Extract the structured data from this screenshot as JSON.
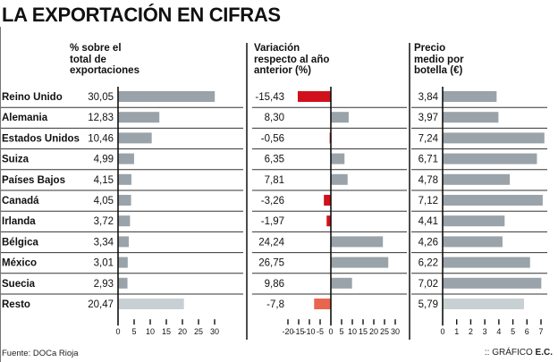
{
  "title": "LA EXPORTACIÓN EN CIFRAS",
  "source": "Fuente: DOCa Rioja",
  "credit_prefix": ":: GRÁFICO ",
  "credit_brand": "E.C.",
  "colors": {
    "bar_gray": "#9aa3a9",
    "bar_light": "#c9d0d4",
    "bar_red": "#d0111b",
    "bar_orange": "#e8664e"
  },
  "chart_data": {
    "type": "bar",
    "title": "LA EXPORTACIÓN EN CIFRAS",
    "categories": [
      "Reino Unido",
      "Alemania",
      "Estados Unidos",
      "Suiza",
      "Países Bajos",
      "Canadá",
      "Irlanda",
      "Bélgica",
      "México",
      "Suecia",
      "Resto"
    ],
    "series": [
      {
        "name": "% sobre el total de exportaciones",
        "header_lines": [
          "% sobre el",
          "total de",
          "exportaciones"
        ],
        "labels": [
          "30,05",
          "12,83",
          "10,46",
          "4,99",
          "4,15",
          "4,05",
          "3,72",
          "3,34",
          "3,01",
          "2,93",
          "20,47"
        ],
        "values": [
          30.05,
          12.83,
          10.46,
          4.99,
          4.15,
          4.05,
          3.72,
          3.34,
          3.01,
          2.93,
          20.47
        ],
        "xlim": [
          0,
          30
        ],
        "ticks": [
          "0",
          "5",
          "10",
          "15",
          "20",
          "25",
          "30"
        ],
        "tick_values": [
          0,
          5,
          10,
          15,
          20,
          25,
          30
        ]
      },
      {
        "name": "Variación respecto al año anterior (%)",
        "header_lines": [
          "Variación",
          "respecto al año",
          "anterior (%)"
        ],
        "labels": [
          "-15,43",
          "8,30",
          "-0,56",
          "6,35",
          "7,81",
          "-3,26",
          "-1,97",
          "24,24",
          "26,75",
          "9,86",
          "-7,8"
        ],
        "values": [
          -15.43,
          8.3,
          -0.56,
          6.35,
          7.81,
          -3.26,
          -1.97,
          24.24,
          26.75,
          9.86,
          -7.8
        ],
        "xlim": [
          -20,
          30
        ],
        "ticks": [
          "-20",
          "-15",
          "-10",
          "-5",
          "0",
          "5",
          "10",
          "15",
          "20",
          "25",
          "30"
        ],
        "tick_values": [
          -20,
          -15,
          -10,
          -5,
          0,
          5,
          10,
          15,
          20,
          25,
          30
        ]
      },
      {
        "name": "Precio medio por botella (€)",
        "header_lines": [
          "Precio",
          "medio por",
          "botella (€)"
        ],
        "labels": [
          "3,84",
          "3,97",
          "7,24",
          "6,71",
          "4,78",
          "7,12",
          "4,41",
          "4,26",
          "6,22",
          "7,02",
          "5,79"
        ],
        "values": [
          3.84,
          3.97,
          7.24,
          6.71,
          4.78,
          7.12,
          4.41,
          4.26,
          6.22,
          7.02,
          5.79
        ],
        "xlim": [
          0,
          7
        ],
        "ticks": [
          "0",
          "1",
          "2",
          "3",
          "4",
          "5",
          "6",
          "7"
        ],
        "tick_values": [
          0,
          1,
          2,
          3,
          4,
          5,
          6,
          7
        ]
      }
    ],
    "xlabel": "",
    "ylabel": "",
    "grid": false,
    "legend": "none"
  }
}
